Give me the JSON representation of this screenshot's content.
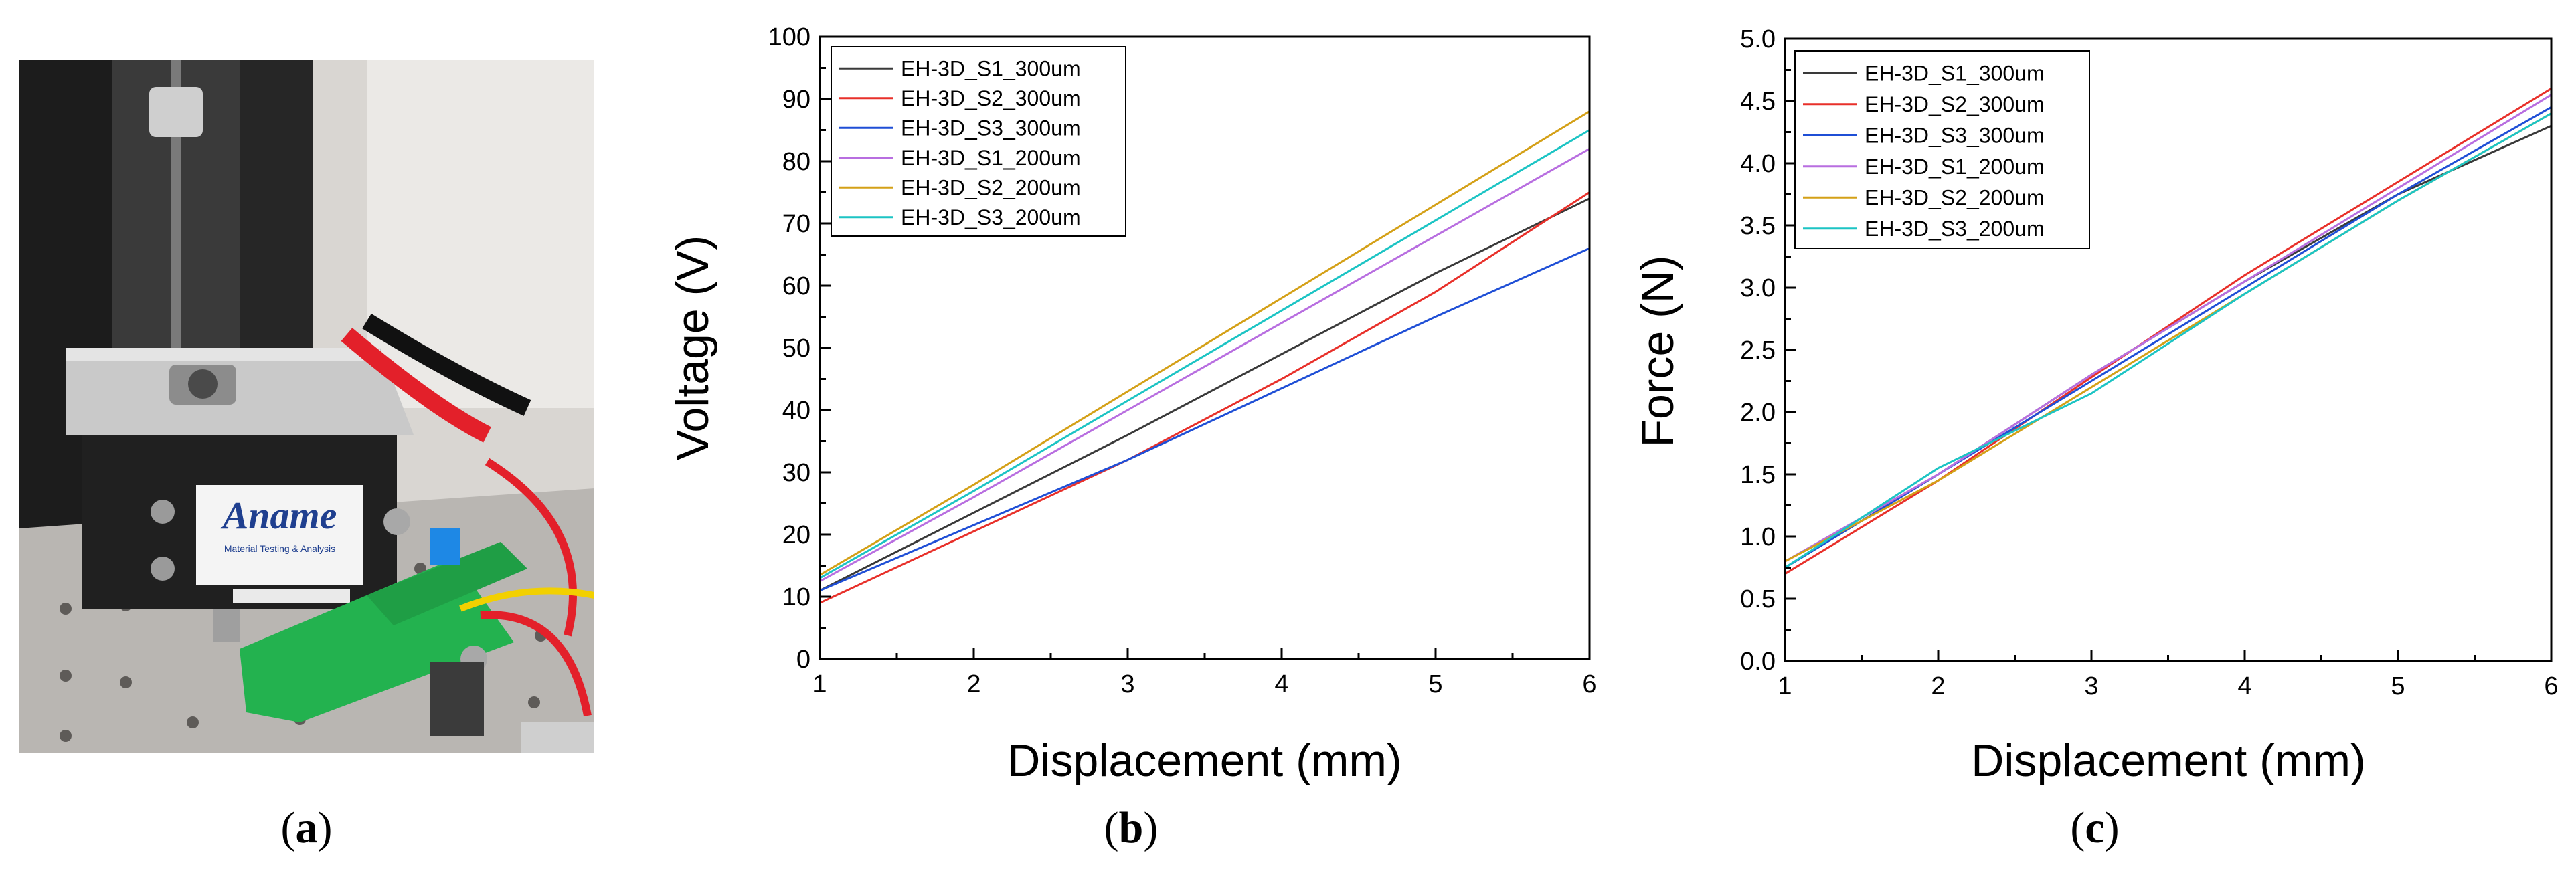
{
  "panels": {
    "a": {
      "open": "(",
      "letter": "a",
      "close": ")"
    },
    "b": {
      "open": "(",
      "letter": "b",
      "close": ")"
    },
    "c": {
      "open": "(",
      "letter": "c",
      "close": ")"
    }
  },
  "photo": {
    "brand_text": "Aname",
    "subtitle_text": "Material Testing & Analysis"
  },
  "colors": {
    "axis": "#000000",
    "S1_300": "#3a3a3a",
    "S2_300": "#e8302a",
    "S3_300": "#1f4fd6",
    "S1_200": "#b86ee0",
    "S2_200": "#d4a017",
    "S3_200": "#1cc4c4"
  },
  "chart_data": [
    {
      "id": "b",
      "type": "line",
      "title": "",
      "xlabel": "Displacement (mm)",
      "ylabel": "Voltage (V)",
      "xlim": [
        1,
        6
      ],
      "ylim": [
        0,
        100
      ],
      "xticks": [
        1,
        2,
        3,
        4,
        5,
        6
      ],
      "yticks": [
        0,
        10,
        20,
        30,
        40,
        50,
        60,
        70,
        80,
        90,
        100
      ],
      "legend": "top-left",
      "series": [
        {
          "name": "EH-3D_S1_300um",
          "color": "#3a3a3a",
          "x": [
            1,
            2,
            3,
            4,
            5,
            6
          ],
          "y": [
            11,
            23.5,
            36,
            49,
            62,
            74
          ]
        },
        {
          "name": "EH-3D_S2_300um",
          "color": "#e8302a",
          "x": [
            1,
            2,
            3,
            4,
            5,
            6
          ],
          "y": [
            9,
            20.5,
            32,
            45,
            59,
            75
          ]
        },
        {
          "name": "EH-3D_S3_300um",
          "color": "#1f4fd6",
          "x": [
            1,
            2,
            3,
            4,
            5,
            6
          ],
          "y": [
            11,
            21.5,
            32,
            43.5,
            55,
            66
          ]
        },
        {
          "name": "EH-3D_S1_200um",
          "color": "#b86ee0",
          "x": [
            1,
            2,
            3,
            4,
            5,
            6
          ],
          "y": [
            12.5,
            26,
            40,
            54,
            68,
            82
          ]
        },
        {
          "name": "EH-3D_S2_200um",
          "color": "#d4a017",
          "x": [
            1,
            2,
            3,
            4,
            5,
            6
          ],
          "y": [
            13.5,
            28,
            43,
            58,
            73,
            88
          ]
        },
        {
          "name": "EH-3D_S3_200um",
          "color": "#1cc4c4",
          "x": [
            1,
            2,
            3,
            4,
            5,
            6
          ],
          "y": [
            13,
            27,
            41.5,
            56,
            70.5,
            85
          ]
        }
      ]
    },
    {
      "id": "c",
      "type": "line",
      "title": "",
      "xlabel": "Displacement (mm)",
      "ylabel": "Force (N)",
      "xlim": [
        1,
        6
      ],
      "ylim": [
        0,
        5
      ],
      "xticks": [
        1,
        2,
        3,
        4,
        5,
        6
      ],
      "yticks": [
        "0.0",
        "0.5",
        "1.0",
        "1.5",
        "2.0",
        "2.5",
        "3.0",
        "3.5",
        "4.0",
        "4.5",
        "5.0"
      ],
      "legend": "top-left",
      "series": [
        {
          "name": "EH-3D_S1_300um",
          "color": "#3a3a3a",
          "x": [
            1,
            2,
            3,
            4,
            5,
            6
          ],
          "y": [
            0.75,
            1.5,
            2.3,
            3.05,
            3.75,
            4.3
          ]
        },
        {
          "name": "EH-3D_S2_300um",
          "color": "#e8302a",
          "x": [
            1,
            2,
            3,
            4,
            5,
            6
          ],
          "y": [
            0.7,
            1.45,
            2.28,
            3.1,
            3.85,
            4.6
          ]
        },
        {
          "name": "EH-3D_S3_300um",
          "color": "#1f4fd6",
          "x": [
            1,
            2,
            3,
            4,
            5,
            6
          ],
          "y": [
            0.75,
            1.5,
            2.25,
            3.0,
            3.75,
            4.45
          ]
        },
        {
          "name": "EH-3D_S1_200um",
          "color": "#b86ee0",
          "x": [
            1,
            2,
            3,
            4,
            5,
            6
          ],
          "y": [
            0.8,
            1.5,
            2.3,
            3.05,
            3.8,
            4.55
          ]
        },
        {
          "name": "EH-3D_S2_200um",
          "color": "#d4a017",
          "x": [
            1,
            2,
            3,
            4,
            5,
            6
          ],
          "y": [
            0.8,
            1.45,
            2.2,
            2.95,
            3.7,
            4.4
          ]
        },
        {
          "name": "EH-3D_S3_200um",
          "color": "#1cc4c4",
          "x": [
            1,
            2,
            3,
            4,
            5,
            6
          ],
          "y": [
            0.75,
            1.55,
            2.15,
            2.95,
            3.7,
            4.4
          ]
        }
      ]
    }
  ]
}
